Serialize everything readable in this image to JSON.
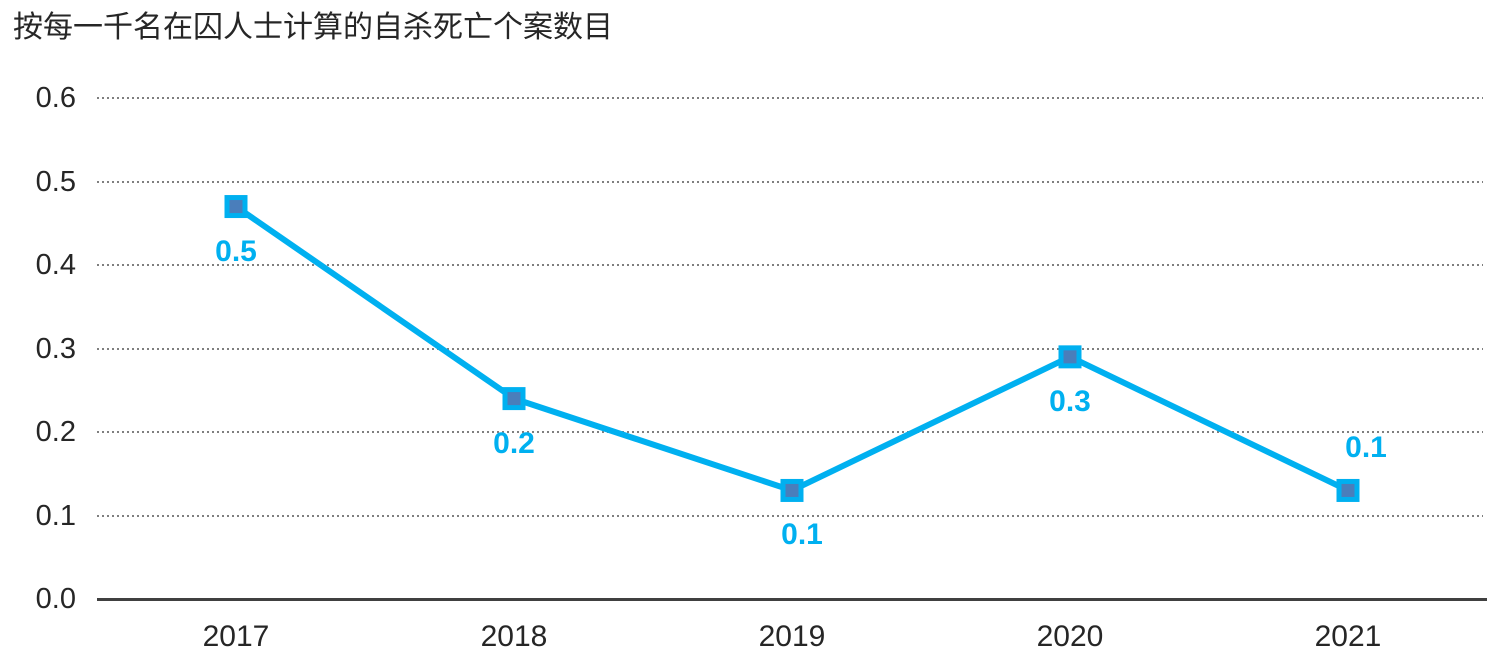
{
  "page": {
    "background": "#FFFFFF"
  },
  "chart_data": {
    "type": "line",
    "title": "按每一千名在囚人士计算的自杀死亡个案数目",
    "categories": [
      "2017",
      "2018",
      "2019",
      "2020",
      "2021"
    ],
    "values": [
      0.47,
      0.24,
      0.13,
      0.29,
      0.13
    ],
    "data_labels": [
      "0.5",
      "0.2",
      "0.1",
      "0.3",
      "0.1"
    ],
    "data_label_positions": [
      "below",
      "below",
      "below",
      "below",
      "above"
    ],
    "xlabel": "",
    "ylabel": "",
    "ylim": [
      0,
      0.6
    ],
    "ytick_labels": [
      "0.0",
      "0.1",
      "0.2",
      "0.3",
      "0.4",
      "0.5",
      "0.6"
    ],
    "grid": "horizontal-dotted",
    "legend": "none",
    "marker": "square",
    "colors": {
      "line": "#00B0F0",
      "marker_fill": "#4A7EBB",
      "marker_border": "#00B0F0",
      "data_label": "#00B0F0",
      "gridline": "#7F7F7F",
      "axis_line": "#404040",
      "tick_label": "#262626",
      "title": "#262626"
    }
  }
}
